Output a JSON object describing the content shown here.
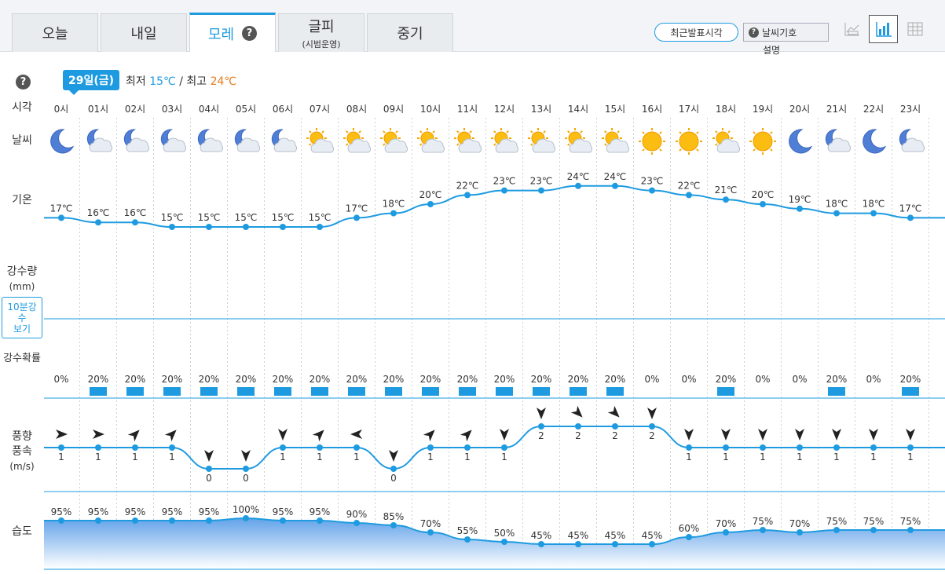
{
  "tabs": [
    {
      "label": "오늘",
      "sub": ""
    },
    {
      "label": "내일",
      "sub": ""
    },
    {
      "label": "모레",
      "sub": ""
    },
    {
      "label": "글피",
      "sub": "(시범운영)"
    },
    {
      "label": "중기",
      "sub": ""
    }
  ],
  "help_glyph": "?",
  "controls": {
    "recent_label": "최근발표시각",
    "symbol_label": "날씨기호",
    "desc_label": "설명"
  },
  "date_badge": "29일(금)",
  "summary": {
    "min_label": "최저",
    "min_value": "15℃",
    "sep": "/",
    "max_label": "최고",
    "max_value": "24℃"
  },
  "row_labels": {
    "time": "시각",
    "weather": "날씨",
    "temp": "기온",
    "precip_line1": "강수량",
    "precip_line2": "(mm)",
    "rain10_line1": "10분강",
    "rain10_line2": "수",
    "rain10_line3": "보기",
    "pop": "강수확률",
    "wind_line1": "풍향",
    "wind_line2": "풍속",
    "wind_line3": "(m/s)",
    "humidity": "습도"
  },
  "colors": {
    "accent": "#1e9be0",
    "hot": "#e87b1c",
    "line": "#1e9be0",
    "bar": "#1e9be0"
  },
  "chart_data": {
    "type": "line",
    "hours": [
      "0시",
      "01시",
      "02시",
      "03시",
      "04시",
      "05시",
      "06시",
      "07시",
      "08시",
      "09시",
      "10시",
      "11시",
      "12시",
      "13시",
      "14시",
      "15시",
      "16시",
      "17시",
      "18시",
      "19시",
      "20시",
      "21시",
      "22시",
      "23시"
    ],
    "weather_icons": [
      "moon-icon",
      "moon-cloud-icon",
      "moon-cloud-icon",
      "moon-cloud-icon",
      "moon-cloud-icon",
      "moon-cloud-icon",
      "moon-cloud-icon",
      "sun-cloud-icon",
      "sun-cloud-icon",
      "sun-cloud-icon",
      "sun-cloud-icon",
      "sun-cloud-icon",
      "sun-cloud-icon",
      "sun-cloud-icon",
      "sun-cloud-icon",
      "sun-cloud-icon",
      "sun-icon",
      "sun-icon",
      "sun-cloud-icon",
      "sun-icon",
      "moon-icon",
      "moon-cloud-icon",
      "moon-icon",
      "moon-cloud-icon"
    ],
    "series": [
      {
        "name": "기온",
        "unit": "℃",
        "values": [
          17,
          16,
          16,
          15,
          15,
          15,
          15,
          15,
          17,
          18,
          20,
          22,
          23,
          23,
          24,
          24,
          23,
          22,
          21,
          20,
          19,
          18,
          18,
          17
        ]
      },
      {
        "name": "강수확률",
        "unit": "%",
        "values": [
          0,
          20,
          20,
          20,
          20,
          20,
          20,
          20,
          20,
          20,
          20,
          20,
          20,
          20,
          20,
          20,
          0,
          0,
          20,
          0,
          0,
          20,
          0,
          20
        ]
      },
      {
        "name": "풍속",
        "unit": "m/s",
        "values": [
          1,
          1,
          1,
          1,
          0,
          0,
          1,
          1,
          1,
          0,
          1,
          1,
          1,
          2,
          2,
          2,
          2,
          1,
          1,
          1,
          1,
          1,
          1,
          1
        ],
        "directions_deg": [
          90,
          90,
          45,
          45,
          180,
          180,
          180,
          45,
          -90,
          180,
          45,
          45,
          180,
          180,
          135,
          135,
          180,
          180,
          180,
          180,
          180,
          180,
          180,
          180
        ]
      },
      {
        "name": "습도",
        "unit": "%",
        "values": [
          95,
          95,
          95,
          95,
          95,
          100,
          95,
          95,
          90,
          85,
          70,
          55,
          50,
          45,
          45,
          45,
          45,
          60,
          70,
          75,
          70,
          75,
          75,
          75
        ]
      }
    ]
  }
}
